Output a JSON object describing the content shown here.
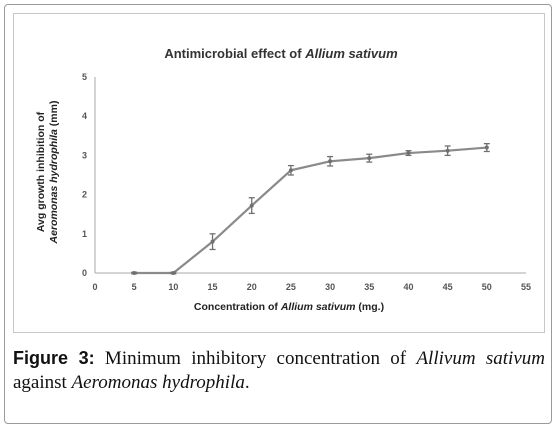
{
  "chart_data": {
    "type": "line",
    "title": {
      "prefix": "Antimicrobial effect of ",
      "italic": "Allium sativum"
    },
    "xlabel": {
      "prefix": "Concentration of ",
      "italic": "Allium sativum",
      "suffix": " (mg.)"
    },
    "ylabel": {
      "line1": "Avg growth inhibition of",
      "line2_italic": "Aeromonas hydrophila",
      "line2_suffix": " (mm)"
    },
    "xlim": [
      0,
      55
    ],
    "ylim": [
      0,
      5
    ],
    "x_ticks": [
      0,
      5,
      10,
      15,
      20,
      25,
      30,
      35,
      40,
      45,
      50,
      55
    ],
    "y_ticks": [
      0,
      1,
      2,
      3,
      4,
      5
    ],
    "grid": false,
    "series": [
      {
        "x": [
          5,
          10,
          15,
          20,
          25,
          30,
          35,
          40,
          45,
          50
        ],
        "y": [
          0,
          0,
          0.8,
          1.72,
          2.62,
          2.85,
          2.93,
          3.06,
          3.12,
          3.2
        ],
        "error": [
          0.02,
          0.02,
          0.2,
          0.2,
          0.12,
          0.12,
          0.1,
          0.06,
          0.12,
          0.1
        ],
        "color": "#8a8a8a"
      }
    ]
  },
  "caption": {
    "label": "Figure 3:",
    "text1": " Minimum inhibitory concentration of ",
    "italic1": "Allivum sativum",
    "text2": " against ",
    "italic2": "Aeromonas hydrophila",
    "text3": "."
  }
}
